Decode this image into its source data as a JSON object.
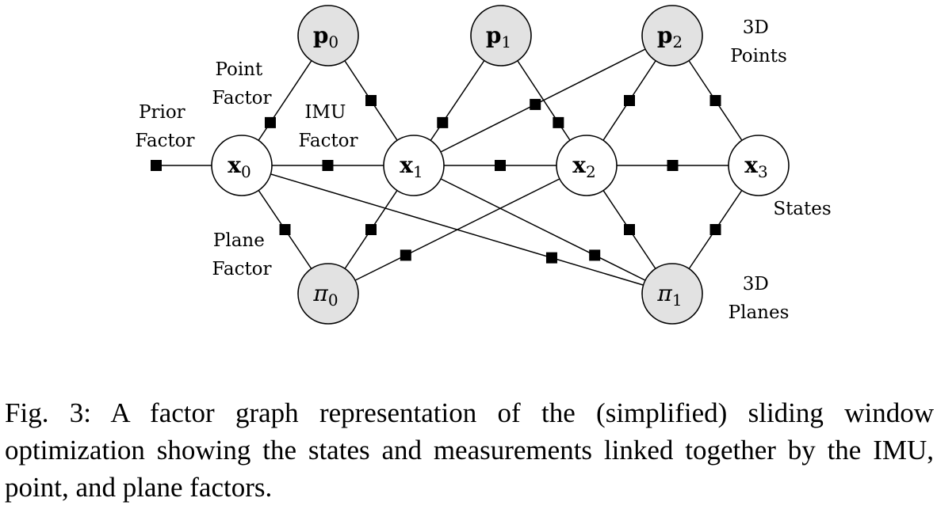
{
  "figure_number": "Fig. 3:",
  "caption_text": "A factor graph representation of the (simplified) sliding window optimization showing the states and measurements linked together by the IMU, point, and plane factors.",
  "nodes": [
    {
      "id": "p0",
      "symbol": "p",
      "sub": "0",
      "kind": "point",
      "fill": "#e2e2e2"
    },
    {
      "id": "p1",
      "symbol": "p",
      "sub": "1",
      "kind": "point",
      "fill": "#e2e2e2"
    },
    {
      "id": "p2",
      "symbol": "p",
      "sub": "2",
      "kind": "point",
      "fill": "#e2e2e2"
    },
    {
      "id": "x0",
      "symbol": "x",
      "sub": "0",
      "kind": "state",
      "fill": "#ffffff"
    },
    {
      "id": "x1",
      "symbol": "x",
      "sub": "1",
      "kind": "state",
      "fill": "#ffffff"
    },
    {
      "id": "x2",
      "symbol": "x",
      "sub": "2",
      "kind": "state",
      "fill": "#ffffff"
    },
    {
      "id": "x3",
      "symbol": "x",
      "sub": "3",
      "kind": "state",
      "fill": "#ffffff"
    },
    {
      "id": "pi0",
      "symbol": "π",
      "sub": "0",
      "kind": "plane",
      "fill": "#e2e2e2"
    },
    {
      "id": "pi1",
      "symbol": "π",
      "sub": "1",
      "kind": "plane",
      "fill": "#e2e2e2"
    }
  ],
  "edges": [
    [
      "x0",
      "x1"
    ],
    [
      "x1",
      "x2"
    ],
    [
      "x2",
      "x3"
    ],
    [
      "p0",
      "x0"
    ],
    [
      "p0",
      "x1"
    ],
    [
      "p1",
      "x1"
    ],
    [
      "p1",
      "x2"
    ],
    [
      "p2",
      "x1"
    ],
    [
      "p2",
      "x2"
    ],
    [
      "p2",
      "x3"
    ],
    [
      "pi0",
      "x0"
    ],
    [
      "pi0",
      "x1"
    ],
    [
      "pi0",
      "x2"
    ],
    [
      "pi1",
      "x0"
    ],
    [
      "pi1",
      "x1"
    ],
    [
      "pi1",
      "x2"
    ],
    [
      "pi1",
      "x3"
    ]
  ],
  "labels": {
    "prior_factor": [
      "Prior",
      "Factor"
    ],
    "point_factor": [
      "Point",
      "Factor"
    ],
    "imu_factor": [
      "IMU",
      "Factor"
    ],
    "plane_factor": [
      "Plane",
      "Factor"
    ],
    "points_3d": [
      "3D",
      "Points"
    ],
    "states": [
      "States"
    ],
    "planes_3d": [
      "3D",
      "Planes"
    ]
  }
}
